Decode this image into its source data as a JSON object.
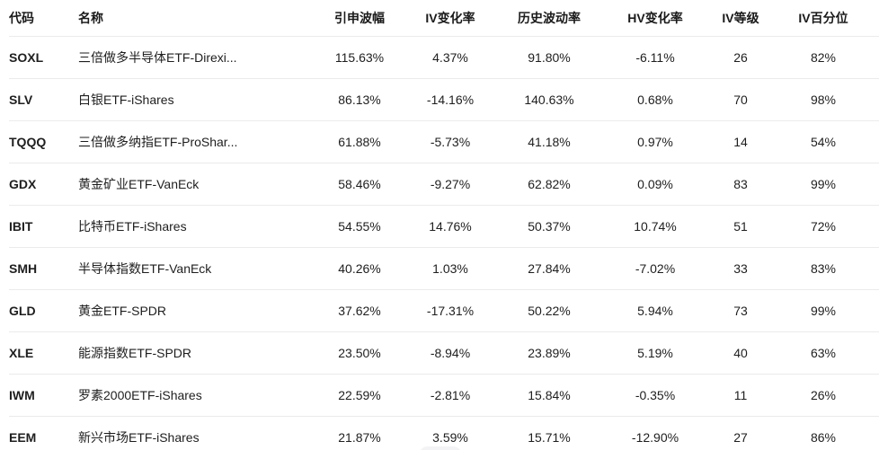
{
  "table": {
    "columns": [
      {
        "key": "code",
        "label": "代码",
        "align": "left"
      },
      {
        "key": "name",
        "label": "名称",
        "align": "left"
      },
      {
        "key": "iv",
        "label": "引申波幅",
        "align": "center"
      },
      {
        "key": "iv_change",
        "label": "IV变化率",
        "align": "center"
      },
      {
        "key": "hv",
        "label": "历史波动率",
        "align": "center"
      },
      {
        "key": "hv_change",
        "label": "HV变化率",
        "align": "center"
      },
      {
        "key": "iv_rank",
        "label": "IV等级",
        "align": "center"
      },
      {
        "key": "iv_percentile",
        "label": "IV百分位",
        "align": "center"
      }
    ],
    "rows": [
      {
        "code": "SOXL",
        "name": "三倍做多半导体ETF-Direxi...",
        "iv": "115.63%",
        "iv_change": "4.37%",
        "hv": "91.80%",
        "hv_change": "-6.11%",
        "iv_rank": "26",
        "iv_percentile": "82%"
      },
      {
        "code": "SLV",
        "name": "白银ETF-iShares",
        "iv": "86.13%",
        "iv_change": "-14.16%",
        "hv": "140.63%",
        "hv_change": "0.68%",
        "iv_rank": "70",
        "iv_percentile": "98%"
      },
      {
        "code": "TQQQ",
        "name": "三倍做多纳指ETF-ProShar...",
        "iv": "61.88%",
        "iv_change": "-5.73%",
        "hv": "41.18%",
        "hv_change": "0.97%",
        "iv_rank": "14",
        "iv_percentile": "54%"
      },
      {
        "code": "GDX",
        "name": "黄金矿业ETF-VanEck",
        "iv": "58.46%",
        "iv_change": "-9.27%",
        "hv": "62.82%",
        "hv_change": "0.09%",
        "iv_rank": "83",
        "iv_percentile": "99%"
      },
      {
        "code": "IBIT",
        "name": "比特币ETF-iShares",
        "iv": "54.55%",
        "iv_change": "14.76%",
        "hv": "50.37%",
        "hv_change": "10.74%",
        "iv_rank": "51",
        "iv_percentile": "72%"
      },
      {
        "code": "SMH",
        "name": "半导体指数ETF-VanEck",
        "iv": "40.26%",
        "iv_change": "1.03%",
        "hv": "27.84%",
        "hv_change": "-7.02%",
        "iv_rank": "33",
        "iv_percentile": "83%"
      },
      {
        "code": "GLD",
        "name": "黄金ETF-SPDR",
        "iv": "37.62%",
        "iv_change": "-17.31%",
        "hv": "50.22%",
        "hv_change": "5.94%",
        "iv_rank": "73",
        "iv_percentile": "99%"
      },
      {
        "code": "XLE",
        "name": "能源指数ETF-SPDR",
        "iv": "23.50%",
        "iv_change": "-8.94%",
        "hv": "23.89%",
        "hv_change": "5.19%",
        "iv_rank": "40",
        "iv_percentile": "63%"
      },
      {
        "code": "IWM",
        "name": "罗素2000ETF-iShares",
        "iv": "22.59%",
        "iv_change": "-2.81%",
        "hv": "15.84%",
        "hv_change": "-0.35%",
        "iv_rank": "11",
        "iv_percentile": "26%"
      },
      {
        "code": "EEM",
        "name": "新兴市场ETF-iShares",
        "iv": "21.87%",
        "iv_change": "3.59%",
        "hv": "15.71%",
        "hv_change": "-12.90%",
        "iv_rank": "27",
        "iv_percentile": "86%"
      }
    ]
  },
  "colors": {
    "text": "#1e1e1e",
    "header_text": "#1a1a1a",
    "divider": "#ebebeb",
    "background": "#ffffff"
  }
}
